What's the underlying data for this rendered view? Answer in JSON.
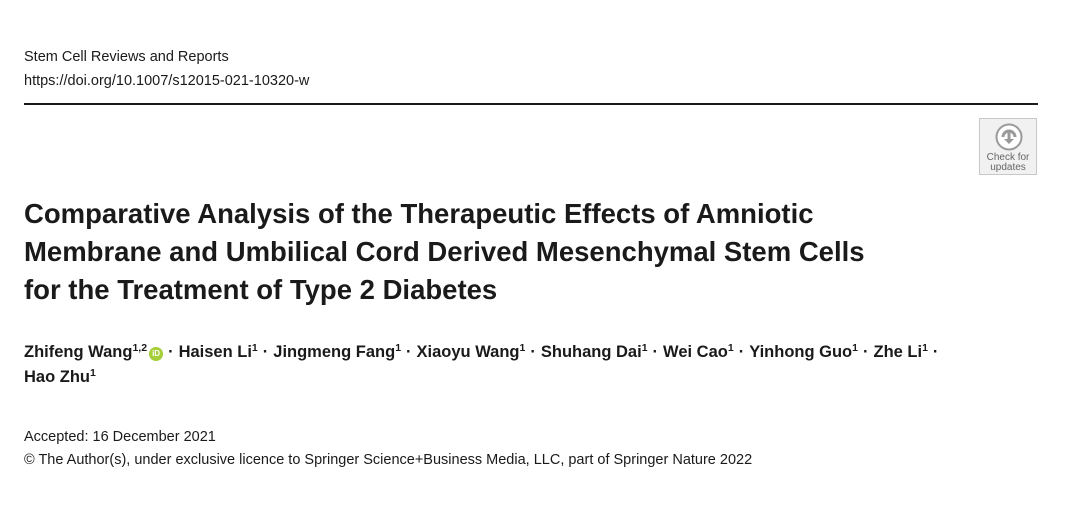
{
  "header": {
    "journal": "Stem Cell Reviews and Reports",
    "doi": "https://doi.org/10.1007/s12015-021-10320-w"
  },
  "check_for_updates": {
    "line1": "Check for",
    "line2": "updates"
  },
  "title": {
    "lines": [
      "Comparative Analysis of the Therapeutic Effects of Amniotic",
      "Membrane and Umbilical Cord Derived Mesenchymal Stem Cells",
      "for the Treatment of Type 2 Diabetes"
    ]
  },
  "authors": [
    {
      "name": "Zhifeng Wang",
      "affil": "1,2",
      "orcid": true
    },
    {
      "name": "Haisen Li",
      "affil": "1"
    },
    {
      "name": "Jingmeng Fang",
      "affil": "1"
    },
    {
      "name": "Xiaoyu Wang",
      "affil": "1"
    },
    {
      "name": "Shuhang Dai",
      "affil": "1"
    },
    {
      "name": "Wei Cao",
      "affil": "1"
    },
    {
      "name": "Yinhong Guo",
      "affil": "1"
    },
    {
      "name": "Zhe Li",
      "affil": "1"
    },
    {
      "name": "Hao Zhu",
      "affil": "1"
    }
  ],
  "author_separator": "·",
  "orcid_label": "iD",
  "accepted": "Accepted: 16 December 2021",
  "copyright": "© The Author(s), under exclusive licence to Springer Science+Business Media, LLC, part of Springer Nature 2022",
  "colors": {
    "orcid": "#a6ce39",
    "text": "#1a1a1a",
    "check_updates_bg": "#f1f1f1"
  }
}
